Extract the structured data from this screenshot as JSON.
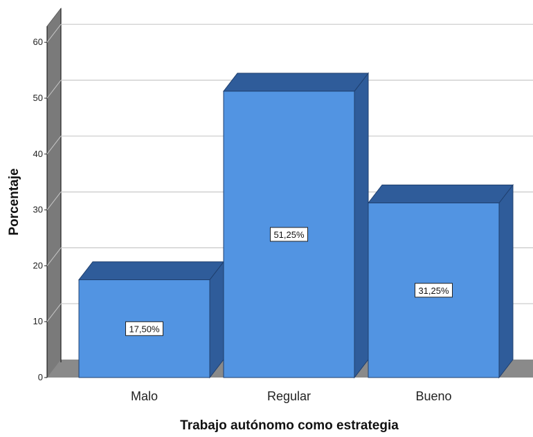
{
  "chart_data": {
    "type": "bar",
    "categories": [
      "Malo",
      "Regular",
      "Bueno"
    ],
    "values": [
      17.5,
      51.25,
      31.25
    ],
    "data_labels": [
      "17,50%",
      "51,25%",
      "31,25%"
    ],
    "xlabel": "Trabajo autónomo como estrategia",
    "ylabel": "Porcentaje",
    "ylim": [
      0,
      65
    ],
    "yticks": [
      0,
      10,
      20,
      30,
      40,
      50,
      60
    ],
    "grid": true,
    "style": "3d",
    "colors": {
      "bar_front": "#5294e2",
      "bar_top": "#2f5c9a",
      "bar_side": "#2f5c9a",
      "bar_edge": "#1f3f6e",
      "wall_side": "#7a7a7a",
      "floor": "#8a8a8a",
      "gridline": "#c8c8c8"
    }
  }
}
